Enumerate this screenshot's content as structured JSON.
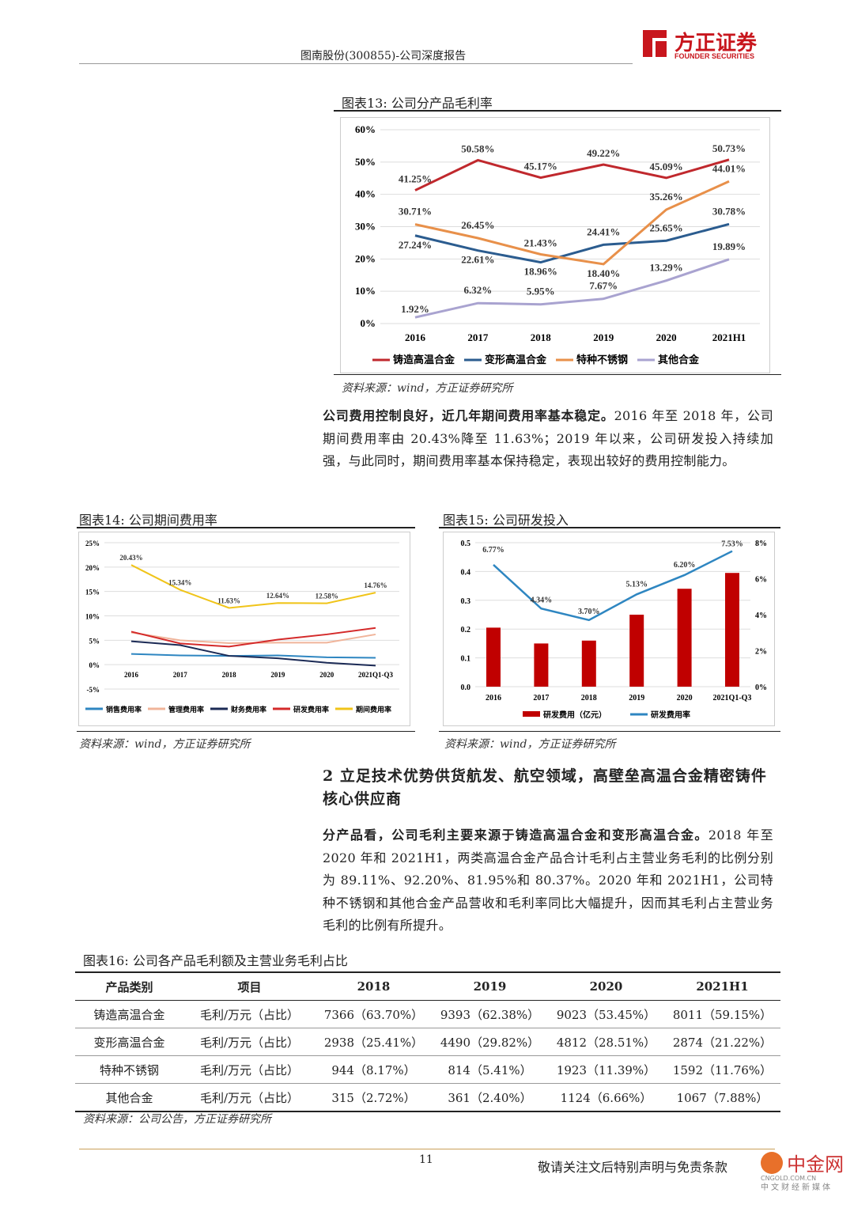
{
  "header": {
    "title": "图南股份(300855)-公司深度报告",
    "logo_cn": "方正证券",
    "logo_en": "FOUNDER SECURITIES",
    "brand_color": "#c8161d"
  },
  "fig13": {
    "caption": "图表13:   公司分产品毛利率",
    "source": "资料来源：wind，方正证券研究所"
  },
  "para1": {
    "bold": "公司费用控制良好，近几年期间费用率基本稳定。",
    "text": "2016 年至 2018 年，公司期间费用率由 20.43%降至 11.63%；2019 年以来，公司研发投入持续加强，与此同时，期间费用率基本保持稳定，表现出较好的费用控制能力。"
  },
  "fig14": {
    "caption": "图表14:   公司期间费用率",
    "source": "资料来源：wind，方正证券研究所"
  },
  "fig15": {
    "caption": "图表15:   公司研发投入",
    "source": "资料来源：wind，方正证券研究所"
  },
  "section2": {
    "title": "2 立足技术优势供货航发、航空领域，高壁垒高温合金精密铸件核心供应商"
  },
  "para2": {
    "bold": "分产品看，公司毛利主要来源于铸造高温合金和变形高温合金。",
    "text": "2018 年至 2020 年和 2021H1，两类高温合金产品合计毛利占主营业务毛利的比例分别为 89.11%、92.20%、81.95%和 80.37%。2020 年和 2021H1，公司特种不锈钢和其他合金产品营收和毛利率同比大幅提升，因而其毛利占主营业务毛利的比例有所提升。"
  },
  "fig16": {
    "caption": "图表16:   公司各产品毛利额及主营业务毛利占比",
    "source": "资料来源：公司公告，方正证券研究所",
    "headers": [
      "产品类别",
      "项目",
      "2018",
      "2019",
      "2020",
      "2021H1"
    ],
    "rows": [
      [
        "铸造高温合金",
        "毛利/万元（占比）",
        "7366（63.70%）",
        "9393（62.38%）",
        "9023（53.45%）",
        "8011（59.15%）"
      ],
      [
        "变形高温合金",
        "毛利/万元（占比）",
        "2938（25.41%）",
        "4490（29.82%）",
        "4812（28.51%）",
        "2874（21.22%）"
      ],
      [
        "特种不锈钢",
        "毛利/万元（占比）",
        "944（8.17%）",
        "814（5.41%）",
        "1923（11.39%）",
        "1592（11.76%）"
      ],
      [
        "其他合金",
        "毛利/万元（占比）",
        "315（2.72%）",
        "361（2.40%）",
        "1124（6.66%）",
        "1067（7.88%）"
      ]
    ]
  },
  "footer": {
    "page": "11",
    "disclaimer": "敬请关注文后特别声明与免责条款",
    "watermark": "中金网",
    "watermark_sub": "CNGOLD.COM.CN",
    "watermark_tag": "中文财经新媒体"
  },
  "chart_data": [
    {
      "type": "line",
      "categories": [
        "2016",
        "2017",
        "2018",
        "2019",
        "2020",
        "2021H1"
      ],
      "ylim": [
        0,
        60
      ],
      "yticks": [
        "0%",
        "10%",
        "20%",
        "30%",
        "40%",
        "50%",
        "60%"
      ],
      "legend": "bottom",
      "series": [
        {
          "name": "铸造高温合金",
          "color": "#c0282d",
          "values": [
            41.25,
            50.58,
            45.17,
            49.22,
            45.09,
            50.73
          ]
        },
        {
          "name": "变形高温合金",
          "color": "#2b5c8f",
          "values": [
            27.24,
            22.61,
            18.96,
            24.41,
            25.65,
            30.78
          ]
        },
        {
          "name": "特种不锈钢",
          "color": "#e8904a",
          "values": [
            30.71,
            26.45,
            21.43,
            18.4,
            35.26,
            44.01
          ]
        },
        {
          "name": "其他合金",
          "color": "#a9a3d0",
          "values": [
            1.92,
            6.32,
            5.95,
            7.67,
            13.29,
            19.89
          ]
        }
      ]
    },
    {
      "type": "line",
      "categories": [
        "2016",
        "2017",
        "2018",
        "2019",
        "2020",
        "2021Q1-Q3"
      ],
      "ylim": [
        -5,
        25
      ],
      "yticks": [
        "-5%",
        "0%",
        "5%",
        "10%",
        "15%",
        "20%",
        "25%"
      ],
      "legend": "bottom",
      "series": [
        {
          "name": "销售费用率",
          "color": "#2e86c1",
          "values": [
            2.2,
            1.9,
            1.8,
            1.9,
            1.5,
            1.4
          ]
        },
        {
          "name": "管理费用率",
          "color": "#f0b49a",
          "values": [
            6.6,
            5.0,
            4.4,
            4.5,
            4.5,
            6.2
          ]
        },
        {
          "name": "财务费用率",
          "color": "#1b2a55",
          "values": [
            4.8,
            4.0,
            1.8,
            1.3,
            0.4,
            -0.2
          ]
        },
        {
          "name": "研发费用率",
          "color": "#d42a2a",
          "values": [
            6.77,
            4.34,
            3.7,
            5.13,
            6.2,
            7.53
          ]
        },
        {
          "name": "期间费用率",
          "color": "#f0c419",
          "values": [
            20.43,
            15.34,
            11.63,
            12.64,
            12.58,
            14.76
          ],
          "labels": [
            "20.43%",
            "15.34%",
            "11.63%",
            "12.64%",
            "12.58%",
            "14.76%"
          ]
        }
      ]
    },
    {
      "type": "bar+line",
      "categories": [
        "2016",
        "2017",
        "2018",
        "2019",
        "2020",
        "2021Q1-Q3"
      ],
      "ylim": [
        0,
        0.5
      ],
      "y2lim": [
        0,
        8
      ],
      "yticks": [
        "0.0",
        "0.1",
        "0.2",
        "0.3",
        "0.4",
        "0.5"
      ],
      "y2ticks": [
        "0%",
        "2%",
        "4%",
        "6%",
        "8%"
      ],
      "legend": "bottom",
      "bars": {
        "name": "研发费用（亿元）",
        "color": "#c00000",
        "values": [
          0.205,
          0.15,
          0.16,
          0.25,
          0.34,
          0.395
        ]
      },
      "line": {
        "name": "研发费用率",
        "color": "#2e86c1",
        "values": [
          6.77,
          4.34,
          3.7,
          5.13,
          6.2,
          7.53
        ]
      }
    }
  ]
}
